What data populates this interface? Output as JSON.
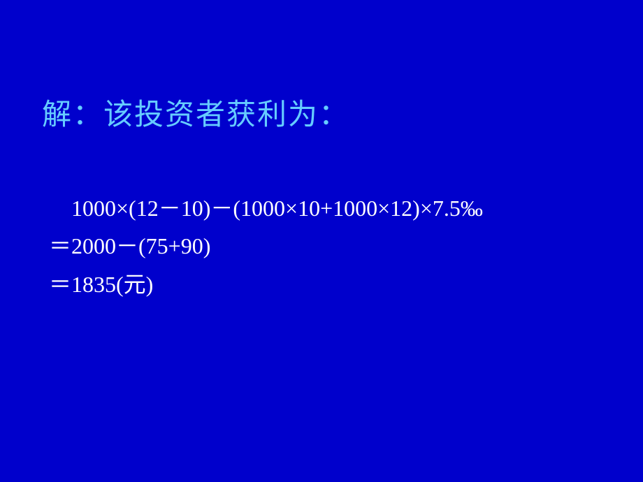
{
  "slide": {
    "background_color": "#0000cc",
    "title": {
      "text": "解：该投资者获利为：",
      "color": "#66ccff",
      "font_size": 42
    },
    "math": {
      "color": "#ffffff",
      "font_size": 32,
      "lines": [
        "1000×(12－10)－(1000×10+1000×12)×7.5‰",
        "＝2000－(75+90)",
        "＝1835(元)"
      ]
    }
  }
}
